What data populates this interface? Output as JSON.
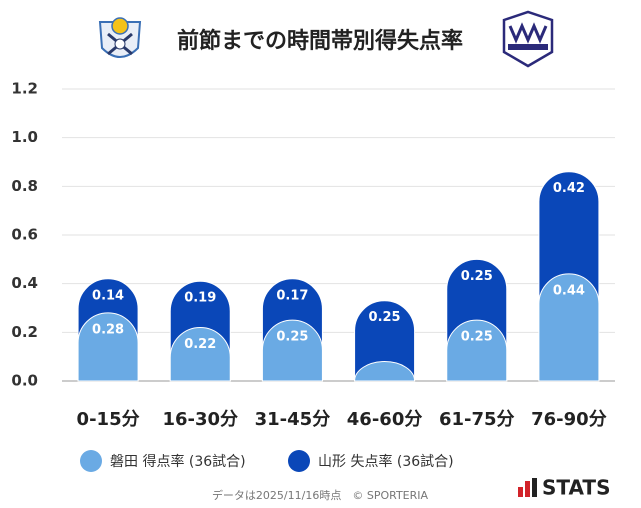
{
  "chart_data": {
    "type": "stacked-bar",
    "title": "前節までの時間帯別得失点率",
    "categories": [
      "0-15分",
      "16-30分",
      "31-45分",
      "46-60分",
      "61-75分",
      "76-90分"
    ],
    "series": [
      {
        "name": "磐田 得点率 (36試合)",
        "color": "#6aaae4",
        "values": [
          0.28,
          0.22,
          0.25,
          0.08,
          0.25,
          0.44
        ],
        "value_labels": [
          "0.28",
          "0.22",
          "0.25",
          null,
          "0.25",
          "0.44"
        ]
      },
      {
        "name": "山形 失点率 (36試合)",
        "color": "#0a47b8",
        "values": [
          0.14,
          0.19,
          0.17,
          0.25,
          0.25,
          0.42
        ],
        "value_labels": [
          "0.14",
          "0.19",
          "0.17",
          "0.25",
          "0.25",
          "0.42"
        ]
      }
    ],
    "ylim": [
      0,
      1.2
    ],
    "yticks": [
      {
        "value": 0,
        "label": "0.0"
      },
      0.2,
      0.4,
      0.6,
      0.8,
      {
        "value": 1,
        "label": "1.0"
      },
      1.2
    ],
    "grid": true,
    "footer": "データは2025/11/16時点　© SPORTERIA",
    "brand": "STATS"
  }
}
